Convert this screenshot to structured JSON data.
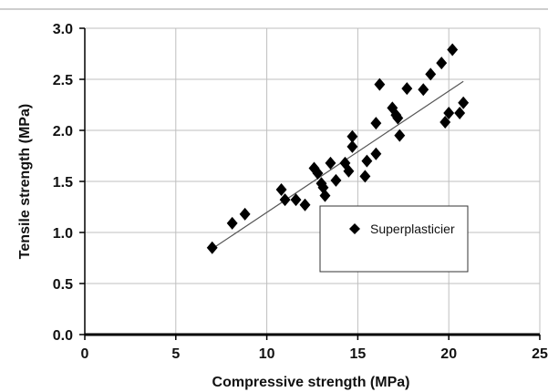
{
  "chart_data": {
    "type": "scatter",
    "title": "",
    "xlabel": "Compressive strength  (MPa)",
    "ylabel": "Tensile strength (MPa)",
    "xlim": [
      0,
      25
    ],
    "ylim": [
      0.0,
      3.0
    ],
    "xticks": [
      0,
      5,
      10,
      15,
      20,
      25
    ],
    "yticks": [
      0.0,
      0.5,
      1.0,
      1.5,
      2.0,
      2.5,
      3.0
    ],
    "xtick_labels": [
      "0",
      "5",
      "10",
      "15",
      "20",
      "25"
    ],
    "ytick_labels": [
      "0.0",
      "0.5",
      "1.0",
      "1.5",
      "2.0",
      "2.5",
      "3.0"
    ],
    "grid": true,
    "legend_position": "center-right",
    "marker": "diamond",
    "marker_color": "#000000",
    "trendline": {
      "type": "linear",
      "from": [
        7.0,
        0.84
      ],
      "to": [
        20.8,
        2.48
      ],
      "color": "#555555"
    },
    "series": [
      {
        "name": "Superplasticier",
        "points": [
          [
            7.0,
            0.85
          ],
          [
            8.1,
            1.09
          ],
          [
            8.8,
            1.18
          ],
          [
            10.8,
            1.42
          ],
          [
            11.0,
            1.32
          ],
          [
            11.6,
            1.32
          ],
          [
            12.1,
            1.27
          ],
          [
            12.6,
            1.63
          ],
          [
            12.8,
            1.58
          ],
          [
            13.0,
            1.48
          ],
          [
            13.1,
            1.44
          ],
          [
            13.2,
            1.36
          ],
          [
            13.5,
            1.68
          ],
          [
            13.8,
            1.51
          ],
          [
            14.3,
            1.68
          ],
          [
            14.5,
            1.6
          ],
          [
            14.7,
            1.84
          ],
          [
            14.7,
            1.94
          ],
          [
            15.4,
            1.55
          ],
          [
            15.5,
            1.7
          ],
          [
            16.0,
            1.77
          ],
          [
            16.0,
            2.07
          ],
          [
            16.2,
            2.45
          ],
          [
            16.9,
            2.22
          ],
          [
            17.1,
            2.15
          ],
          [
            17.2,
            2.12
          ],
          [
            17.3,
            1.95
          ],
          [
            17.7,
            2.41
          ],
          [
            18.6,
            2.4
          ],
          [
            19.0,
            2.55
          ],
          [
            19.6,
            2.66
          ],
          [
            19.8,
            2.08
          ],
          [
            20.0,
            2.17
          ],
          [
            20.2,
            2.79
          ],
          [
            20.6,
            2.17
          ],
          [
            20.8,
            2.27
          ]
        ]
      }
    ]
  }
}
